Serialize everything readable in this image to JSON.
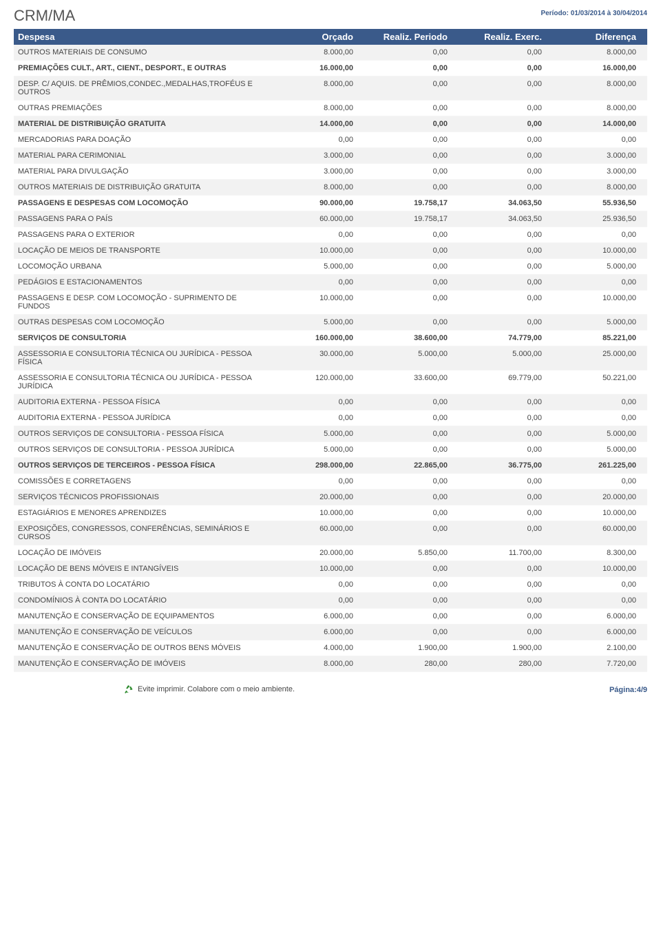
{
  "header": {
    "title": "CRM/MA",
    "period": "Período: 01/03/2014 à 30/04/2014"
  },
  "columns": {
    "c0": "Despesa",
    "c1": "Orçado",
    "c2": "Realiz. Periodo",
    "c3": "Realiz. Exerc.",
    "c4": "Diferença"
  },
  "rows": [
    {
      "label": "OUTROS MATERIAIS DE CONSUMO",
      "indent": 2,
      "bold": false,
      "alt": true,
      "v": [
        "8.000,00",
        "0,00",
        "0,00",
        "8.000,00"
      ]
    },
    {
      "label": "PREMIAÇÕES CULT., ART., CIENT., DESPORT., E OUTRAS",
      "indent": 1,
      "bold": true,
      "alt": false,
      "v": [
        "16.000,00",
        "0,00",
        "0,00",
        "16.000,00"
      ]
    },
    {
      "label": "DESP. C/ AQUIS. DE PRÊMIOS,CONDEC.,MEDALHAS,TROFÉUS E OUTROS",
      "indent": 2,
      "bold": false,
      "alt": true,
      "v": [
        "8.000,00",
        "0,00",
        "0,00",
        "8.000,00"
      ]
    },
    {
      "label": "OUTRAS PREMIAÇÕES",
      "indent": 2,
      "bold": false,
      "alt": false,
      "v": [
        "8.000,00",
        "0,00",
        "0,00",
        "8.000,00"
      ]
    },
    {
      "label": "MATERIAL DE DISTRIBUIÇÃO GRATUITA",
      "indent": 1,
      "bold": true,
      "alt": true,
      "v": [
        "14.000,00",
        "0,00",
        "0,00",
        "14.000,00"
      ]
    },
    {
      "label": "MERCADORIAS PARA DOAÇÃO",
      "indent": 2,
      "bold": false,
      "alt": false,
      "v": [
        "0,00",
        "0,00",
        "0,00",
        "0,00"
      ]
    },
    {
      "label": "MATERIAL PARA CERIMONIAL",
      "indent": 2,
      "bold": false,
      "alt": true,
      "v": [
        "3.000,00",
        "0,00",
        "0,00",
        "3.000,00"
      ]
    },
    {
      "label": "MATERIAL PARA DIVULGAÇÃO",
      "indent": 2,
      "bold": false,
      "alt": false,
      "v": [
        "3.000,00",
        "0,00",
        "0,00",
        "3.000,00"
      ]
    },
    {
      "label": "OUTROS MATERIAIS DE DISTRIBUIÇÃO GRATUITA",
      "indent": 2,
      "bold": false,
      "alt": true,
      "v": [
        "8.000,00",
        "0,00",
        "0,00",
        "8.000,00"
      ]
    },
    {
      "label": "PASSAGENS E DESPESAS COM LOCOMOÇÃO",
      "indent": 1,
      "bold": true,
      "alt": false,
      "v": [
        "90.000,00",
        "19.758,17",
        "34.063,50",
        "55.936,50"
      ]
    },
    {
      "label": "PASSAGENS PARA O PAÍS",
      "indent": 2,
      "bold": false,
      "alt": true,
      "v": [
        "60.000,00",
        "19.758,17",
        "34.063,50",
        "25.936,50"
      ]
    },
    {
      "label": "PASSAGENS PARA O EXTERIOR",
      "indent": 2,
      "bold": false,
      "alt": false,
      "v": [
        "0,00",
        "0,00",
        "0,00",
        "0,00"
      ]
    },
    {
      "label": "LOCAÇÃO DE MEIOS DE TRANSPORTE",
      "indent": 2,
      "bold": false,
      "alt": true,
      "v": [
        "10.000,00",
        "0,00",
        "0,00",
        "10.000,00"
      ]
    },
    {
      "label": "LOCOMOÇÃO URBANA",
      "indent": 2,
      "bold": false,
      "alt": false,
      "v": [
        "5.000,00",
        "0,00",
        "0,00",
        "5.000,00"
      ]
    },
    {
      "label": "PEDÁGIOS E ESTACIONAMENTOS",
      "indent": 2,
      "bold": false,
      "alt": true,
      "v": [
        "0,00",
        "0,00",
        "0,00",
        "0,00"
      ]
    },
    {
      "label": "PASSAGENS E DESP. COM LOCOMOÇÃO - SUPRIMENTO DE FUNDOS",
      "indent": 2,
      "bold": false,
      "alt": false,
      "v": [
        "10.000,00",
        "0,00",
        "0,00",
        "10.000,00"
      ]
    },
    {
      "label": "OUTRAS DESPESAS COM LOCOMOÇÃO",
      "indent": 2,
      "bold": false,
      "alt": true,
      "v": [
        "5.000,00",
        "0,00",
        "0,00",
        "5.000,00"
      ]
    },
    {
      "label": "SERVIÇOS DE CONSULTORIA",
      "indent": 1,
      "bold": true,
      "alt": false,
      "v": [
        "160.000,00",
        "38.600,00",
        "74.779,00",
        "85.221,00"
      ]
    },
    {
      "label": "ASSESSORIA E CONSULTORIA TÉCNICA OU JURÍDICA - PESSOA FÍSICA",
      "indent": 2,
      "bold": false,
      "alt": true,
      "v": [
        "30.000,00",
        "5.000,00",
        "5.000,00",
        "25.000,00"
      ]
    },
    {
      "label": "ASSESSORIA E CONSULTORIA TÉCNICA OU JURÍDICA - PESSOA JURÍDICA",
      "indent": 2,
      "bold": false,
      "alt": false,
      "v": [
        "120.000,00",
        "33.600,00",
        "69.779,00",
        "50.221,00"
      ]
    },
    {
      "label": "AUDITORIA EXTERNA - PESSOA FÍSICA",
      "indent": 2,
      "bold": false,
      "alt": true,
      "v": [
        "0,00",
        "0,00",
        "0,00",
        "0,00"
      ]
    },
    {
      "label": "AUDITORIA EXTERNA - PESSOA JURÍDICA",
      "indent": 2,
      "bold": false,
      "alt": false,
      "v": [
        "0,00",
        "0,00",
        "0,00",
        "0,00"
      ]
    },
    {
      "label": "OUTROS SERVIÇOS DE CONSULTORIA  - PESSOA FÍSICA",
      "indent": 2,
      "bold": false,
      "alt": true,
      "v": [
        "5.000,00",
        "0,00",
        "0,00",
        "5.000,00"
      ]
    },
    {
      "label": "OUTROS SERVIÇOS DE CONSULTORIA - PESSOA JURÍDICA",
      "indent": 2,
      "bold": false,
      "alt": false,
      "v": [
        "5.000,00",
        "0,00",
        "0,00",
        "5.000,00"
      ]
    },
    {
      "label": "OUTROS SERVIÇOS DE TERCEIROS - PESSOA FÍSICA",
      "indent": 1,
      "bold": true,
      "alt": true,
      "v": [
        "298.000,00",
        "22.865,00",
        "36.775,00",
        "261.225,00"
      ]
    },
    {
      "label": "COMISSÕES E CORRETAGENS",
      "indent": 2,
      "bold": false,
      "alt": false,
      "v": [
        "0,00",
        "0,00",
        "0,00",
        "0,00"
      ]
    },
    {
      "label": "SERVIÇOS TÉCNICOS PROFISSIONAIS",
      "indent": 2,
      "bold": false,
      "alt": true,
      "v": [
        "20.000,00",
        "0,00",
        "0,00",
        "20.000,00"
      ]
    },
    {
      "label": "ESTAGIÁRIOS E MENORES APRENDIZES",
      "indent": 2,
      "bold": false,
      "alt": false,
      "v": [
        "10.000,00",
        "0,00",
        "0,00",
        "10.000,00"
      ]
    },
    {
      "label": "EXPOSIÇÕES, CONGRESSOS, CONFERÊNCIAS, SEMINÁRIOS E CURSOS",
      "indent": 2,
      "bold": false,
      "alt": true,
      "v": [
        "60.000,00",
        "0,00",
        "0,00",
        "60.000,00"
      ]
    },
    {
      "label": "LOCAÇÃO DE IMÓVEIS",
      "indent": 2,
      "bold": false,
      "alt": false,
      "v": [
        "20.000,00",
        "5.850,00",
        "11.700,00",
        "8.300,00"
      ]
    },
    {
      "label": "LOCAÇÃO DE BENS MÓVEIS E INTANGÍVEIS",
      "indent": 2,
      "bold": false,
      "alt": true,
      "v": [
        "10.000,00",
        "0,00",
        "0,00",
        "10.000,00"
      ]
    },
    {
      "label": "TRIBUTOS À CONTA DO LOCATÁRIO",
      "indent": 2,
      "bold": false,
      "alt": false,
      "v": [
        "0,00",
        "0,00",
        "0,00",
        "0,00"
      ]
    },
    {
      "label": "CONDOMÍNIOS À CONTA DO LOCATÁRIO",
      "indent": 2,
      "bold": false,
      "alt": true,
      "v": [
        "0,00",
        "0,00",
        "0,00",
        "0,00"
      ]
    },
    {
      "label": "MANUTENÇÃO E CONSERVAÇÃO DE EQUIPAMENTOS",
      "indent": 2,
      "bold": false,
      "alt": false,
      "v": [
        "6.000,00",
        "0,00",
        "0,00",
        "6.000,00"
      ]
    },
    {
      "label": "MANUTENÇÃO E CONSERVAÇÃO DE VEÍCULOS",
      "indent": 2,
      "bold": false,
      "alt": true,
      "v": [
        "6.000,00",
        "0,00",
        "0,00",
        "6.000,00"
      ]
    },
    {
      "label": "MANUTENÇÃO E CONSERVAÇÃO DE OUTROS BENS MÓVEIS",
      "indent": 2,
      "bold": false,
      "alt": false,
      "v": [
        "4.000,00",
        "1.900,00",
        "1.900,00",
        "2.100,00"
      ]
    },
    {
      "label": "MANUTENÇÃO E CONSERVAÇÃO DE IMÓVEIS",
      "indent": 2,
      "bold": false,
      "alt": true,
      "v": [
        "8.000,00",
        "280,00",
        "280,00",
        "7.720,00"
      ]
    }
  ],
  "footer": {
    "eco": "Evite imprimir. Colabore com o meio ambiente.",
    "page": "Página:4/9"
  }
}
